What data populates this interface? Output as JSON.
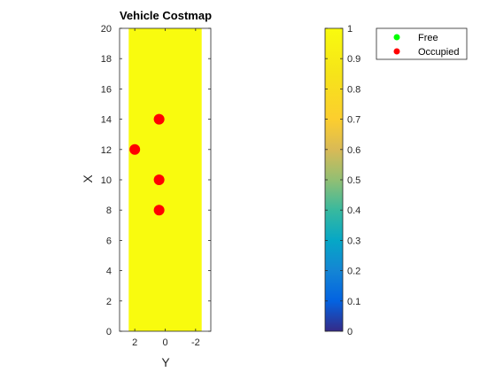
{
  "chart_data": {
    "type": "scatter",
    "title": "Vehicle Costmap",
    "xlabel": "Y",
    "ylabel": "X",
    "xlim": [
      3,
      -3
    ],
    "ylim": [
      0,
      20
    ],
    "x_reversed": true,
    "xticks": [
      2,
      0,
      -2
    ],
    "xtick_labels": [
      "2",
      "0",
      "-2"
    ],
    "yticks": [
      0,
      2,
      4,
      6,
      8,
      10,
      12,
      14,
      16,
      18,
      20
    ],
    "ytick_labels": [
      "0",
      "2",
      "4",
      "6",
      "8",
      "10",
      "12",
      "14",
      "16",
      "18",
      "20"
    ],
    "grid": false,
    "costmap": {
      "cost_value": 1,
      "y_range": [
        -2.4,
        2.4
      ],
      "x_range": [
        0,
        20
      ],
      "color": "#F9FB0E"
    },
    "colorbar": {
      "range": [
        0,
        1
      ],
      "ticks": [
        0,
        0.1,
        0.2,
        0.3,
        0.4,
        0.5,
        0.6,
        0.7,
        0.8,
        0.9,
        1
      ],
      "tick_labels": [
        "0",
        "0.1",
        "0.2",
        "0.3",
        "0.4",
        "0.5",
        "0.6",
        "0.7",
        "0.8",
        "0.9",
        "1"
      ],
      "colormap": "parula"
    },
    "legend": {
      "location": "top-right, outside",
      "entries": [
        {
          "label": "Free",
          "color": "#00FF00"
        },
        {
          "label": "Occupied",
          "color": "#FF0000"
        }
      ]
    },
    "series": [
      {
        "name": "Free",
        "color": "#00FF00",
        "points": []
      },
      {
        "name": "Occupied",
        "color": "#FF0000",
        "points": [
          {
            "y": 0.4,
            "x": 14
          },
          {
            "y": 2.0,
            "x": 12
          },
          {
            "y": 0.4,
            "x": 10
          },
          {
            "y": 0.4,
            "x": 8
          }
        ]
      }
    ]
  }
}
